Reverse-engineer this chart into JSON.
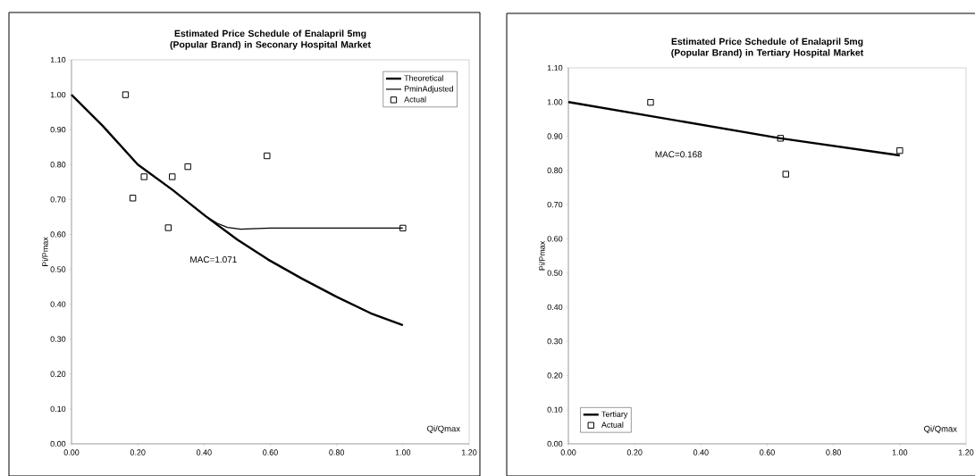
{
  "chart_data": [
    {
      "type": "line",
      "title": "Estimated Price Schedule of Enalapril 5mg (Popular Brand) in Seconary Hospital Market",
      "xlabel": "Qi/Qmax",
      "ylabel": "Pi/Pmax",
      "annotations": [
        "MAC=1.071"
      ],
      "legend": "top right",
      "xlim": [
        0,
        1.2
      ],
      "ylim": [
        0,
        1.1
      ],
      "xticks": [
        {
          "value": 0,
          "label": "0.00"
        },
        {
          "value": 0.2,
          "label": "0.20"
        },
        {
          "value": 0.4,
          "label": "0.40"
        },
        {
          "value": 0.6,
          "label": "0.60"
        },
        {
          "value": 0.8,
          "label": "0.80"
        },
        {
          "value": 1,
          "label": "1.00"
        },
        {
          "value": 1.2,
          "label": "1.20"
        }
      ],
      "yticks": [
        {
          "value": 0,
          "label": "0.00"
        },
        {
          "value": 0.1,
          "label": "0.10"
        },
        {
          "value": 0.2,
          "label": "0.20"
        },
        {
          "value": 0.3,
          "label": "0.30"
        },
        {
          "value": 0.4,
          "label": "0.40"
        },
        {
          "value": 0.5,
          "label": "0.50"
        },
        {
          "value": 0.6,
          "label": "0.60"
        },
        {
          "value": 0.7,
          "label": "0.70"
        },
        {
          "value": 0.8,
          "label": "0.80"
        },
        {
          "value": 0.9,
          "label": "0.90"
        },
        {
          "value": 1,
          "label": "1.00"
        },
        {
          "value": 1.1,
          "label": "1.10"
        }
      ],
      "series": [
        {
          "name": "Theoretical",
          "color": "#000000",
          "x": [
            0,
            0.094,
            0.2,
            0.304,
            0.405,
            0.5,
            0.593,
            0.696,
            0.8,
            0.903,
            1.0
          ],
          "values": [
            1.0,
            0.911,
            0.8,
            0.728,
            0.652,
            0.585,
            0.528,
            0.473,
            0.421,
            0.374,
            0.34
          ]
        },
        {
          "name": "PminAdjusted",
          "color": "#000000",
          "x": [
            0,
            0.094,
            0.2,
            0.304,
            0.405,
            0.44,
            0.47,
            0.51,
            0.6,
            0.8,
            1.0
          ],
          "values": [
            1.0,
            0.911,
            0.8,
            0.728,
            0.652,
            0.632,
            0.62,
            0.615,
            0.618,
            0.618,
            0.618
          ]
        },
        {
          "name": "Actual",
          "type": "scatter",
          "marker": "square",
          "color": "#000000",
          "x": [
            0.163,
            0.185,
            0.219,
            0.292,
            0.304,
            0.351,
            0.59,
            1.0
          ],
          "values": [
            1.0,
            0.704,
            0.765,
            0.619,
            0.765,
            0.794,
            0.825,
            0.618
          ]
        }
      ]
    },
    {
      "type": "line",
      "title": "Estimated Price Schedule of Enalapril 5mg (Popular Brand) in Tertiary Hospital Market",
      "xlabel": "Qi/Qmax",
      "ylabel": "Pi/Pmax",
      "annotations": [
        "MAC=0.168"
      ],
      "legend": "bottom left",
      "xlim": [
        0,
        1.2
      ],
      "ylim": [
        0,
        1.1
      ],
      "xticks": [
        {
          "value": 0,
          "label": "0.00"
        },
        {
          "value": 0.2,
          "label": "0.20"
        },
        {
          "value": 0.4,
          "label": "0.40"
        },
        {
          "value": 0.6,
          "label": "0.60"
        },
        {
          "value": 0.8,
          "label": "0.80"
        },
        {
          "value": 1,
          "label": "1.00"
        },
        {
          "value": 1.2,
          "label": "1.20"
        }
      ],
      "yticks": [
        {
          "value": 0,
          "label": "0.00"
        },
        {
          "value": 0.1,
          "label": "0.10"
        },
        {
          "value": 0.2,
          "label": "0.20"
        },
        {
          "value": 0.3,
          "label": "0.30"
        },
        {
          "value": 0.4,
          "label": "0.40"
        },
        {
          "value": 0.5,
          "label": "0.50"
        },
        {
          "value": 0.6,
          "label": "0.60"
        },
        {
          "value": 0.7,
          "label": "0.70"
        },
        {
          "value": 0.8,
          "label": "0.80"
        },
        {
          "value": 0.9,
          "label": "0.90"
        },
        {
          "value": 1,
          "label": "1.00"
        },
        {
          "value": 1.1,
          "label": "1.10"
        }
      ],
      "series": [
        {
          "name": "Tertiary",
          "color": "#000000",
          "x": [
            0,
            0.64,
            1.0
          ],
          "values": [
            1.0,
            0.894,
            0.844
          ]
        },
        {
          "name": "Actual",
          "type": "scatter",
          "marker": "square",
          "color": "#000000",
          "x": [
            0.248,
            0.64,
            0.656,
            1.0
          ],
          "values": [
            0.999,
            0.894,
            0.789,
            0.858
          ]
        }
      ]
    }
  ]
}
